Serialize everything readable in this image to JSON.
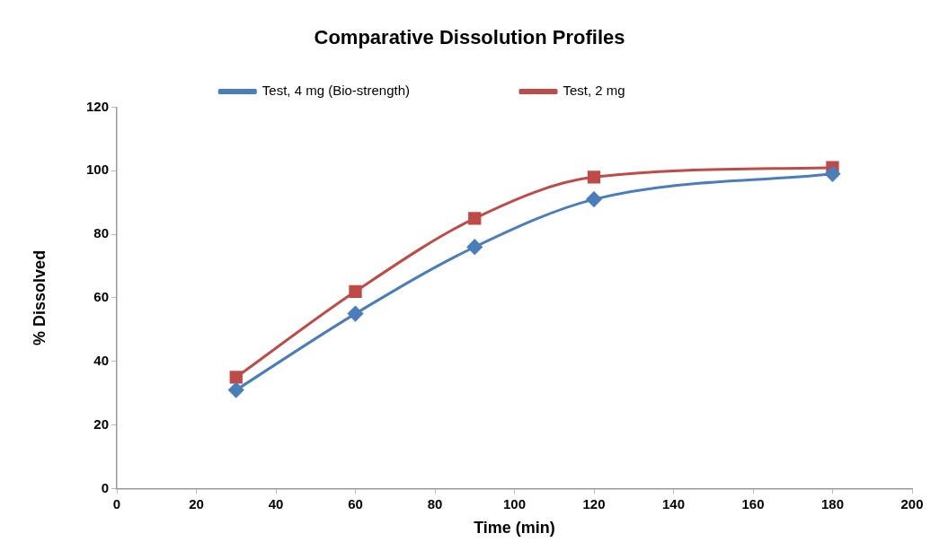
{
  "chart_data": {
    "type": "line",
    "title": "Comparative Dissolution Profiles",
    "xlabel": "Time (min)",
    "ylabel": "% Dissolved",
    "x": [
      30,
      60,
      90,
      120,
      180
    ],
    "series": [
      {
        "name": "Test, 4 mg (Bio-strength)",
        "color": "#4a7ebb",
        "marker": "diamond",
        "values": [
          31,
          55,
          76,
          91,
          99
        ]
      },
      {
        "name": "Test, 2 mg",
        "color": "#be4b48",
        "marker": "square",
        "values": [
          35,
          62,
          85,
          98,
          101
        ]
      }
    ],
    "xlim": [
      0,
      200
    ],
    "xticks": [
      0,
      20,
      40,
      60,
      80,
      100,
      120,
      140,
      160,
      180,
      200
    ],
    "ylim": [
      0,
      120
    ],
    "yticks": [
      0,
      20,
      40,
      60,
      80,
      100,
      120
    ],
    "grid": false,
    "legend": "top",
    "line_style": "solid"
  }
}
